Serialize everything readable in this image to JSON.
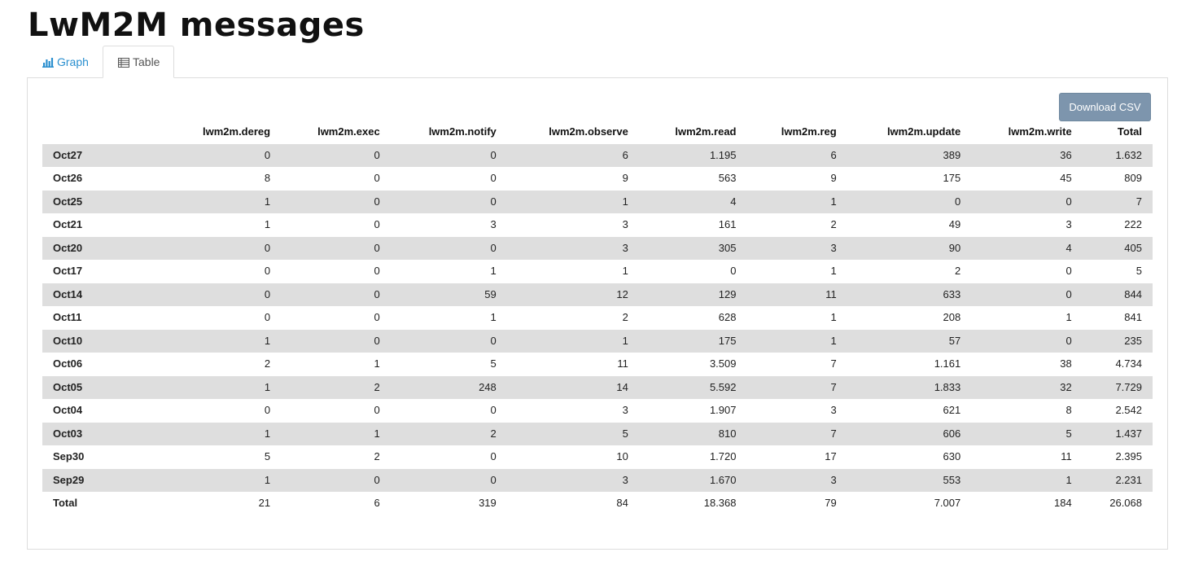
{
  "page": {
    "title": "LwM2M messages"
  },
  "tabs": {
    "graph": "Graph",
    "table": "Table"
  },
  "toolbar": {
    "download_csv": "Download CSV"
  },
  "table": {
    "columns": [
      "",
      "lwm2m.dereg",
      "lwm2m.exec",
      "lwm2m.notify",
      "lwm2m.observe",
      "lwm2m.read",
      "lwm2m.reg",
      "lwm2m.update",
      "lwm2m.write",
      "Total"
    ],
    "rows": [
      [
        "Oct27",
        "0",
        "0",
        "0",
        "6",
        "1.195",
        "6",
        "389",
        "36",
        "1.632"
      ],
      [
        "Oct26",
        "8",
        "0",
        "0",
        "9",
        "563",
        "9",
        "175",
        "45",
        "809"
      ],
      [
        "Oct25",
        "1",
        "0",
        "0",
        "1",
        "4",
        "1",
        "0",
        "0",
        "7"
      ],
      [
        "Oct21",
        "1",
        "0",
        "3",
        "3",
        "161",
        "2",
        "49",
        "3",
        "222"
      ],
      [
        "Oct20",
        "0",
        "0",
        "0",
        "3",
        "305",
        "3",
        "90",
        "4",
        "405"
      ],
      [
        "Oct17",
        "0",
        "0",
        "1",
        "1",
        "0",
        "1",
        "2",
        "0",
        "5"
      ],
      [
        "Oct14",
        "0",
        "0",
        "59",
        "12",
        "129",
        "11",
        "633",
        "0",
        "844"
      ],
      [
        "Oct11",
        "0",
        "0",
        "1",
        "2",
        "628",
        "1",
        "208",
        "1",
        "841"
      ],
      [
        "Oct10",
        "1",
        "0",
        "0",
        "1",
        "175",
        "1",
        "57",
        "0",
        "235"
      ],
      [
        "Oct06",
        "2",
        "1",
        "5",
        "11",
        "3.509",
        "7",
        "1.161",
        "38",
        "4.734"
      ],
      [
        "Oct05",
        "1",
        "2",
        "248",
        "14",
        "5.592",
        "7",
        "1.833",
        "32",
        "7.729"
      ],
      [
        "Oct04",
        "0",
        "0",
        "0",
        "3",
        "1.907",
        "3",
        "621",
        "8",
        "2.542"
      ],
      [
        "Oct03",
        "1",
        "1",
        "2",
        "5",
        "810",
        "7",
        "606",
        "5",
        "1.437"
      ],
      [
        "Sep30",
        "5",
        "2",
        "0",
        "10",
        "1.720",
        "17",
        "630",
        "11",
        "2.395"
      ],
      [
        "Sep29",
        "1",
        "0",
        "0",
        "3",
        "1.670",
        "3",
        "553",
        "1",
        "2.231"
      ]
    ],
    "total_row": [
      "Total",
      "21",
      "6",
      "319",
      "84",
      "18.368",
      "79",
      "7.007",
      "184",
      "26.068"
    ]
  },
  "icons": {
    "graph_tab": "bar-chart-icon",
    "table_tab": "table-icon"
  },
  "colors": {
    "link": "#2a8fcf",
    "button": "#7d95ad",
    "row_stripe": "#dedede"
  }
}
